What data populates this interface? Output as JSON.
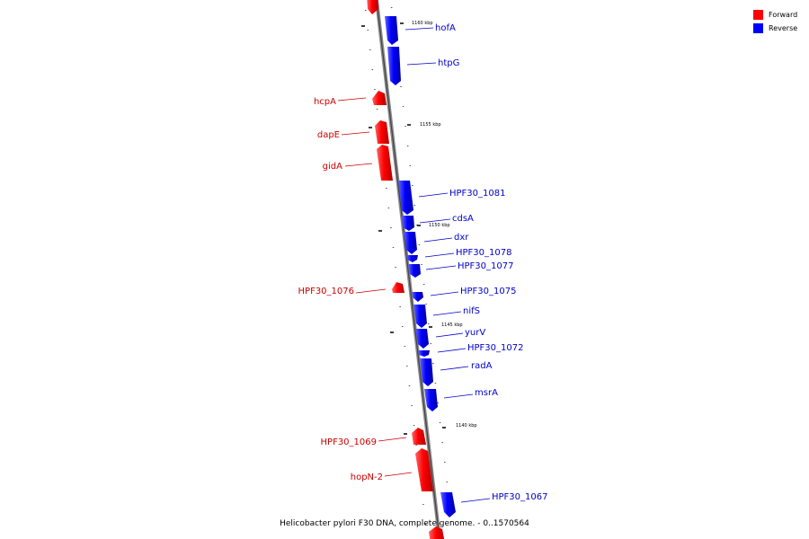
{
  "caption": "Helicobacter pylori F30 DNA, complete genome. - 0..1570564",
  "legend": [
    {
      "label": "Forward",
      "color": "#ff0000"
    },
    {
      "label": "Reverse",
      "color": "#0000ff"
    }
  ],
  "colors": {
    "forward": "#ff0000",
    "reverse": "#0000ff",
    "forward_label": "#cc0000",
    "reverse_label": "#0000cc"
  },
  "ticks": [
    {
      "label": "1160 kbp"
    },
    {
      "label": "1155 kbp"
    },
    {
      "label": "1150 kbp"
    },
    {
      "label": "1145 kbp"
    },
    {
      "label": "1140 kbp"
    }
  ],
  "genes": [
    {
      "name": "",
      "strand": "forward"
    },
    {
      "name": "hofA",
      "strand": "reverse"
    },
    {
      "name": "htpG",
      "strand": "reverse"
    },
    {
      "name": "hcpA",
      "strand": "forward"
    },
    {
      "name": "dapE",
      "strand": "forward"
    },
    {
      "name": "gidA",
      "strand": "forward"
    },
    {
      "name": "HPF30_1081",
      "strand": "reverse"
    },
    {
      "name": "cdsA",
      "strand": "reverse"
    },
    {
      "name": "dxr",
      "strand": "reverse"
    },
    {
      "name": "HPF30_1078",
      "strand": "reverse"
    },
    {
      "name": "HPF30_1077",
      "strand": "reverse"
    },
    {
      "name": "HPF30_1076",
      "strand": "forward"
    },
    {
      "name": "HPF30_1075",
      "strand": "reverse"
    },
    {
      "name": "nifS",
      "strand": "reverse"
    },
    {
      "name": "yurV",
      "strand": "reverse"
    },
    {
      "name": "HPF30_1072",
      "strand": "reverse"
    },
    {
      "name": "radA",
      "strand": "reverse"
    },
    {
      "name": "msrA",
      "strand": "reverse"
    },
    {
      "name": "HPF30_1069",
      "strand": "forward"
    },
    {
      "name": "hopN-2",
      "strand": "forward"
    },
    {
      "name": "HPF30_1067",
      "strand": "reverse"
    },
    {
      "name": "",
      "strand": "forward"
    }
  ]
}
